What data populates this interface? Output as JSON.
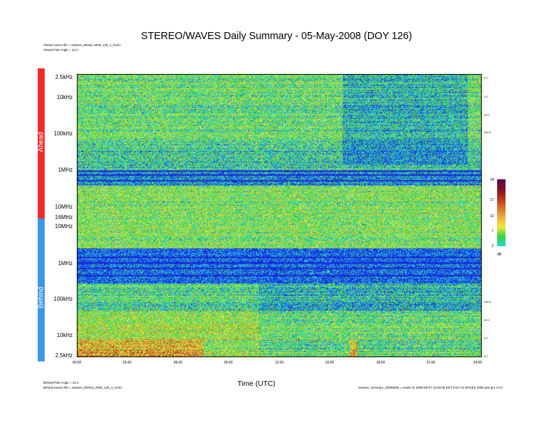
{
  "title": "STEREO/WAVES Daily Summary - 05-May-2008 (DOY 126)",
  "header_notes": {
    "ahead_source": "Ahead source file = swaves_ahead_2008_126_1_04.lin",
    "ahead_pse": "Ahead PSE Angle = 23.3"
  },
  "footer_notes": {
    "behind_pse": "Behind PSE Angle = 23.3",
    "behind_source": "Behind source file = swaves_behind_2008_126_1_04.lin",
    "right": "swaves_summary_20080505_r  made on 2008-05-07 23:34:05 EDT from rr4 WAVES 2008 gmt.pro  V4.0"
  },
  "spacecraft": {
    "ahead": "Ahead",
    "behind": "Behind"
  },
  "colorbar": {
    "unit": "dB",
    "ticks": [
      "24",
      "17",
      "12",
      "7",
      "2"
    ],
    "colors": [
      "#5a0a4e",
      "#7a1022",
      "#b8321c",
      "#d9702a",
      "#e8b043",
      "#f2e640",
      "#2fd43a",
      "#2bd8d8"
    ]
  },
  "chart_data": {
    "type": "heatmap",
    "title": "STEREO/WAVES Daily Summary - 05-May-2008 (DOY 126)",
    "xlabel": "Time (UTC)",
    "x_ticks": [
      "00:00",
      "03:00",
      "06:00",
      "09:00",
      "12:00",
      "15:00",
      "18:00",
      "21:00",
      "24:00"
    ],
    "x_range": [
      "00:00",
      "24:00"
    ],
    "panels": [
      {
        "name": "Ahead",
        "y_ticks": [
          "2.5kHz",
          "10kHz",
          "100kHz",
          "1MHz",
          "10MHz",
          "16MHz"
        ],
        "y_range": [
          "2.5kHz",
          "16MHz"
        ],
        "right_ticks": [
          "0.1",
          "1.0",
          "10.0",
          "100.0"
        ]
      },
      {
        "name": "Behind",
        "y_ticks": [
          "10MHz",
          "1MHz",
          "100kHz",
          "10kHz",
          "2.5kHz"
        ],
        "y_range": [
          "10MHz",
          "2.5kHz"
        ],
        "right_ticks": [
          "100.0",
          "10.0",
          "1.0",
          "0.1"
        ]
      }
    ],
    "z_unit": "dB",
    "z_range": [
      2,
      24
    ]
  }
}
